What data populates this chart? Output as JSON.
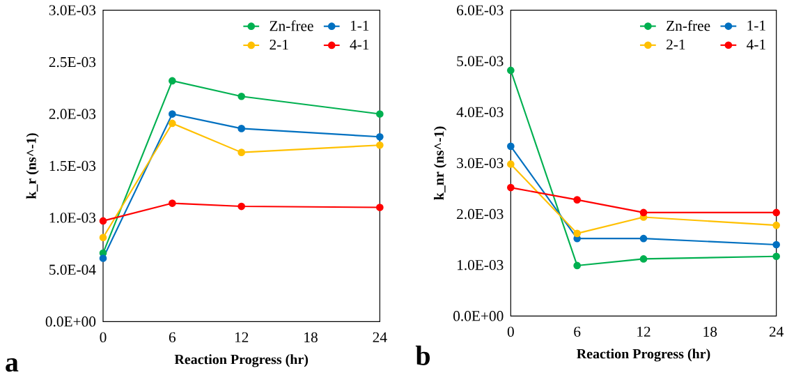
{
  "chart_data": [
    {
      "type": "line",
      "xlabel": "Reaction Progress (hr)",
      "ylabel": "k_r (ns^-1)",
      "annotations": [
        "a"
      ],
      "x": [
        0,
        6,
        12,
        24
      ],
      "xlim": [
        0,
        24
      ],
      "xticks": [
        0,
        6,
        12,
        18,
        24
      ],
      "ylim": [
        0,
        0.003
      ],
      "yticks": [
        {
          "value": 0,
          "label": "0.0E+00"
        },
        {
          "value": 0.0005,
          "label": "5.0E-04"
        },
        {
          "value": 0.001,
          "label": "1.0E-03"
        },
        {
          "value": 0.0015,
          "label": "1.5E-03"
        },
        {
          "value": 0.002,
          "label": "2.0E-03"
        },
        {
          "value": 0.0025,
          "label": "2.5E-03"
        },
        {
          "value": 0.003,
          "label": "3.0E-03"
        }
      ],
      "grid": false,
      "legend": "top right",
      "marker": "circle",
      "line_style": "solid",
      "series": [
        {
          "name": "Zn-free",
          "color": "#00b050",
          "values": [
            0.00066,
            0.00232,
            0.00217,
            0.002
          ]
        },
        {
          "name": "1-1",
          "color": "#0070c0",
          "values": [
            0.00061,
            0.002,
            0.00186,
            0.00178
          ]
        },
        {
          "name": "2-1",
          "color": "#ffc000",
          "values": [
            0.00081,
            0.00191,
            0.00163,
            0.0017
          ]
        },
        {
          "name": "4-1",
          "color": "#ff0000",
          "values": [
            0.00097,
            0.00114,
            0.00111,
            0.0011
          ]
        }
      ]
    },
    {
      "type": "line",
      "xlabel": "Reaction Progress (hr)",
      "ylabel": "k_nr (ns^-1)",
      "annotations": [
        "b"
      ],
      "x": [
        0,
        6,
        12,
        24
      ],
      "xlim": [
        0,
        24
      ],
      "xticks": [
        0,
        6,
        12,
        18,
        24
      ],
      "ylim": [
        0,
        0.006
      ],
      "yticks": [
        {
          "value": 0,
          "label": "0.0E+00"
        },
        {
          "value": 0.001,
          "label": "1.0E-03"
        },
        {
          "value": 0.002,
          "label": "2.0E-03"
        },
        {
          "value": 0.003,
          "label": "3.0E-03"
        },
        {
          "value": 0.004,
          "label": "4.0E-03"
        },
        {
          "value": 0.005,
          "label": "5.0E-03"
        },
        {
          "value": 0.006,
          "label": "6.0E-03"
        }
      ],
      "grid": false,
      "legend": "top right",
      "marker": "circle",
      "line_style": "solid",
      "series": [
        {
          "name": "Zn-free",
          "color": "#00b050",
          "values": [
            0.00482,
            0.00099,
            0.00112,
            0.00117
          ]
        },
        {
          "name": "1-1",
          "color": "#0070c0",
          "values": [
            0.00333,
            0.00152,
            0.00152,
            0.0014
          ]
        },
        {
          "name": "2-1",
          "color": "#ffc000",
          "values": [
            0.00298,
            0.00162,
            0.00194,
            0.00178
          ]
        },
        {
          "name": "4-1",
          "color": "#ff0000",
          "values": [
            0.00252,
            0.00228,
            0.00203,
            0.00203
          ]
        }
      ]
    }
  ]
}
